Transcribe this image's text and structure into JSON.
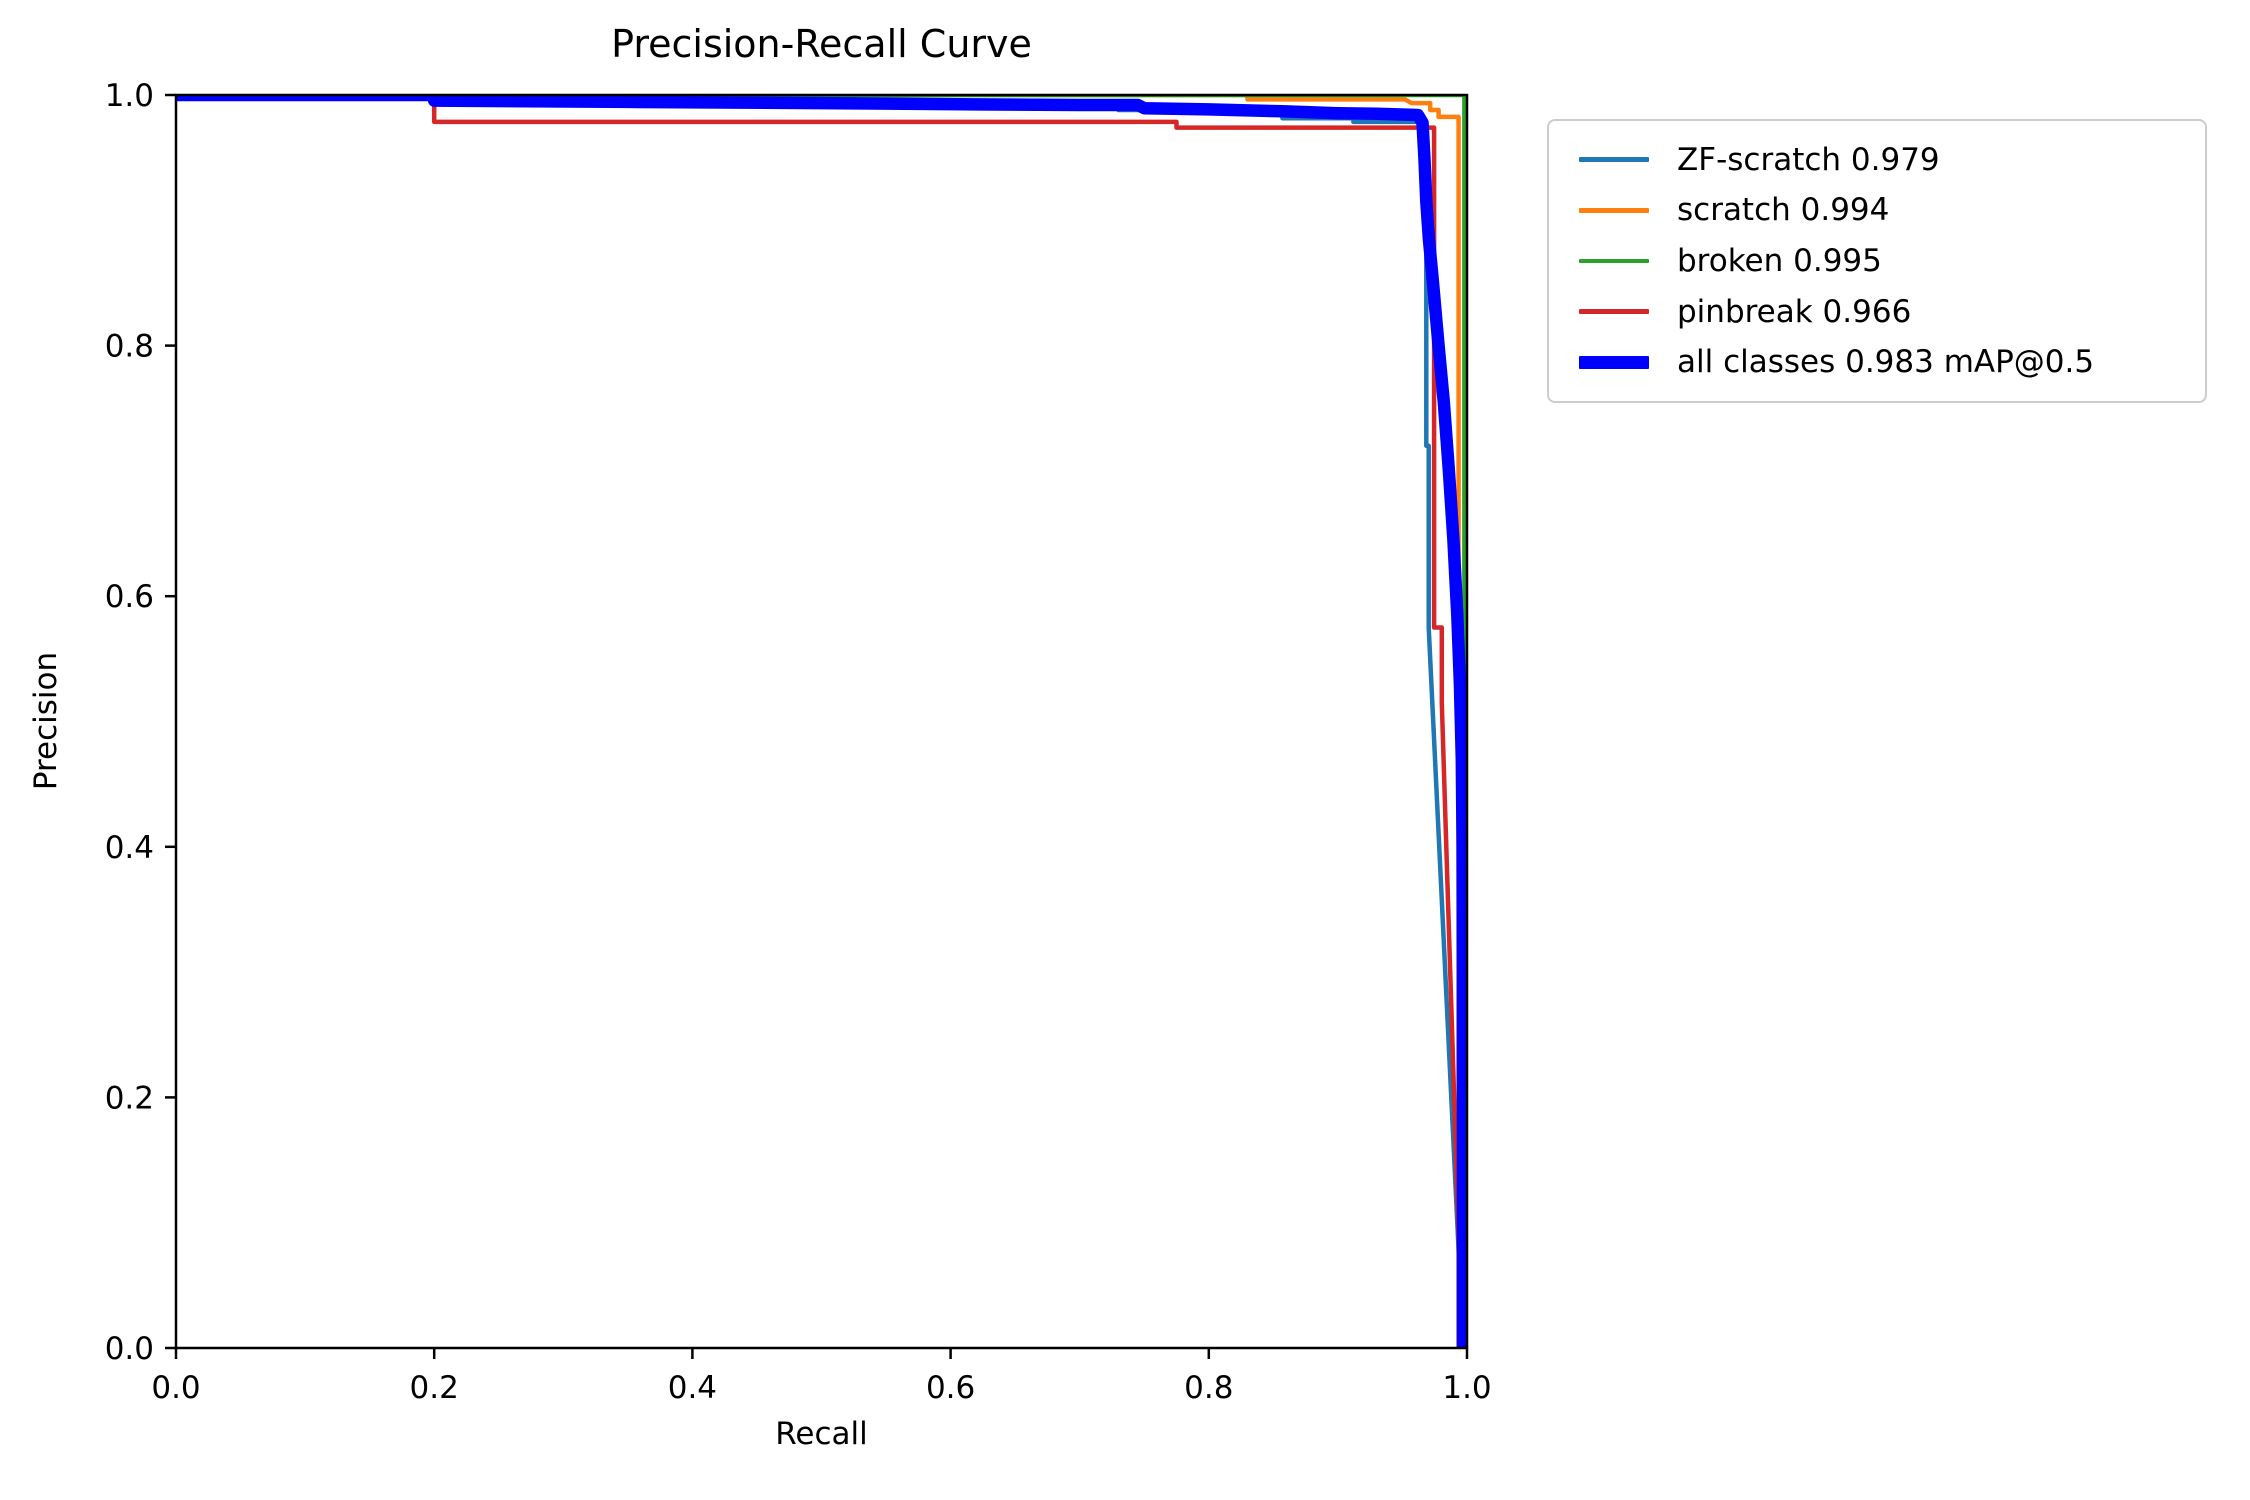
{
  "chart_data": {
    "type": "line",
    "title": "Precision-Recall Curve",
    "xlabel": "Recall",
    "ylabel": "Precision",
    "xlim": [
      0.0,
      1.0
    ],
    "ylim": [
      0.0,
      1.0
    ],
    "grid": false,
    "legend_position": "outside-upper-right",
    "axis_color": "#000000",
    "background_color": "#ffffff",
    "legend_border_color": "#cccccc",
    "x_ticks": {
      "values": [
        0.0,
        0.2,
        0.4,
        0.6,
        0.8,
        1.0
      ],
      "labels": [
        "0.0",
        "0.2",
        "0.4",
        "0.6",
        "0.8",
        "1.0"
      ]
    },
    "y_ticks": {
      "values": [
        0.0,
        0.2,
        0.4,
        0.6,
        0.8,
        1.0
      ],
      "labels": [
        "0.0",
        "0.2",
        "0.4",
        "0.6",
        "0.8",
        "1.0"
      ]
    },
    "series": [
      {
        "name": "ZF-scratch",
        "legend_label": "ZF-scratch 0.979",
        "ap": 0.979,
        "color": "#1f77b4",
        "line_width": 4.5,
        "points": [
          [
            0.0,
            1.0
          ],
          [
            0.2,
            1.0
          ],
          [
            0.2,
            0.993
          ],
          [
            0.73,
            0.993
          ],
          [
            0.73,
            0.988
          ],
          [
            0.857,
            0.988
          ],
          [
            0.857,
            0.9815
          ],
          [
            0.912,
            0.9815
          ],
          [
            0.912,
            0.9785
          ],
          [
            0.9685,
            0.9785
          ],
          [
            0.9685,
            0.72
          ],
          [
            0.9703,
            0.72
          ],
          [
            0.9703,
            0.575
          ],
          [
            0.9962,
            0.02
          ],
          [
            0.9962,
            0.0
          ]
        ]
      },
      {
        "name": "scratch",
        "legend_label": "scratch 0.994",
        "ap": 0.994,
        "color": "#ff7f0e",
        "line_width": 4.5,
        "points": [
          [
            0.0,
            1.0
          ],
          [
            0.83,
            1.0
          ],
          [
            0.83,
            0.9965
          ],
          [
            0.952,
            0.9965
          ],
          [
            0.957,
            0.9935
          ],
          [
            0.9715,
            0.9935
          ],
          [
            0.9715,
            0.988
          ],
          [
            0.978,
            0.988
          ],
          [
            0.978,
            0.9825
          ],
          [
            0.9935,
            0.9825
          ],
          [
            0.9935,
            0.0
          ]
        ]
      },
      {
        "name": "broken",
        "legend_label": "broken 0.995",
        "ap": 0.995,
        "color": "#2ca02c",
        "line_width": 4.5,
        "points": [
          [
            0.0,
            1.0
          ],
          [
            0.998,
            1.0
          ],
          [
            0.998,
            0.0
          ]
        ]
      },
      {
        "name": "pinbreak",
        "legend_label": "pinbreak 0.966",
        "ap": 0.966,
        "color": "#d62728",
        "line_width": 4.5,
        "points": [
          [
            0.0,
            1.0
          ],
          [
            0.2,
            1.0
          ],
          [
            0.2,
            0.9785
          ],
          [
            0.775,
            0.9785
          ],
          [
            0.775,
            0.974
          ],
          [
            0.9745,
            0.974
          ],
          [
            0.9745,
            0.575
          ],
          [
            0.9805,
            0.575
          ],
          [
            0.9805,
            0.515
          ],
          [
            0.9955,
            0.02
          ],
          [
            0.9955,
            0.0
          ]
        ]
      },
      {
        "name": "all classes",
        "legend_label": "all classes 0.983 mAP@0.5",
        "ap": 0.983,
        "color": "#0000ff",
        "line_width": 12.5,
        "points": [
          [
            0.0,
            1.0
          ],
          [
            0.2,
            1.0
          ],
          [
            0.2,
            0.9955
          ],
          [
            0.35,
            0.9945
          ],
          [
            0.5,
            0.9935
          ],
          [
            0.62,
            0.9925
          ],
          [
            0.7,
            0.992
          ],
          [
            0.745,
            0.992
          ],
          [
            0.75,
            0.9895
          ],
          [
            0.8,
            0.9885
          ],
          [
            0.857,
            0.987
          ],
          [
            0.9,
            0.9855
          ],
          [
            0.93,
            0.985
          ],
          [
            0.962,
            0.984
          ],
          [
            0.9655,
            0.978
          ],
          [
            0.967,
            0.95
          ],
          [
            0.9685,
            0.915
          ],
          [
            0.9705,
            0.885
          ],
          [
            0.9735,
            0.852
          ],
          [
            0.9775,
            0.805
          ],
          [
            0.982,
            0.755
          ],
          [
            0.986,
            0.7
          ],
          [
            0.9895,
            0.645
          ],
          [
            0.9925,
            0.585
          ],
          [
            0.9945,
            0.53
          ],
          [
            0.996,
            0.47
          ],
          [
            0.9966,
            0.4
          ],
          [
            0.9968,
            0.3
          ],
          [
            0.9968,
            0.0
          ]
        ]
      }
    ]
  }
}
